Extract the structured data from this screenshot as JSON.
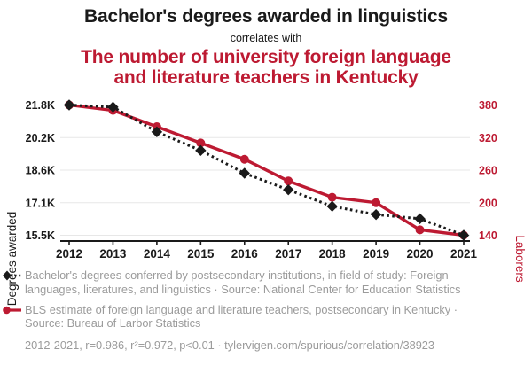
{
  "header": {
    "title": "Bachelor's degrees awarded in linguistics",
    "connector": "correlates with",
    "subtitle": "The number of university foreign language and literature teachers in Kentucky",
    "subtitle_lines": [
      "The number of university foreign language",
      "and literature teachers in Kentucky"
    ],
    "subtitle_color": "#bd1a32"
  },
  "chart_data": {
    "type": "line",
    "x": [
      2012,
      2013,
      2014,
      2015,
      2016,
      2017,
      2018,
      2019,
      2020,
      2021
    ],
    "x_tick_labels": [
      "2012",
      "2013",
      "2014",
      "2015",
      "2016",
      "2017",
      "2018",
      "2019",
      "2020",
      "2021"
    ],
    "series": [
      {
        "name": "Bachelor's degrees conferred by postsecondary institutions, in field of study: Foreign languages, literatures, and linguistics",
        "axis": "left",
        "color": "#1a1a1a",
        "line_style": "dotted",
        "marker": "diamond",
        "values": [
          21800,
          21700,
          20500,
          19600,
          18500,
          17700,
          16900,
          16500,
          16300,
          15500
        ]
      },
      {
        "name": "BLS estimate of foreign language and literature teachers, postsecondary in Kentucky",
        "axis": "right",
        "color": "#bd1a32",
        "line_style": "solid",
        "marker": "circle",
        "values": [
          380,
          370,
          340,
          310,
          280,
          240,
          210,
          200,
          150,
          140
        ]
      }
    ],
    "left_axis": {
      "label": "Degrees awarded",
      "tick_labels": [
        "21.8K",
        "20.2K",
        "18.6K",
        "17.1K",
        "15.5K"
      ],
      "range": [
        15500,
        21800
      ]
    },
    "right_axis": {
      "label": "Laborers",
      "tick_labels": [
        "380",
        "320",
        "260",
        "200",
        "140"
      ],
      "range": [
        140,
        380
      ],
      "color": "#bd1a32"
    },
    "grid": "horizontal",
    "legend_position": "bottom"
  },
  "legend": {
    "items": [
      {
        "icon": "black-diamond-dotted-line",
        "text": "Bachelor's degrees conferred by postsecondary institutions, in field of study: Foreign languages, literatures, and linguistics · Source: National Center for Education Statistics"
      },
      {
        "icon": "red-circle-solid-line",
        "text": "BLS estimate of foreign language and literature teachers, postsecondary in Kentucky · Source: Bureau of Larbor Statistics"
      }
    ]
  },
  "footer": {
    "stats": "2012-2021, r=0.986, r²=0.972, p<0.01 · tylervigen.com/spurious/correlation/38923"
  }
}
